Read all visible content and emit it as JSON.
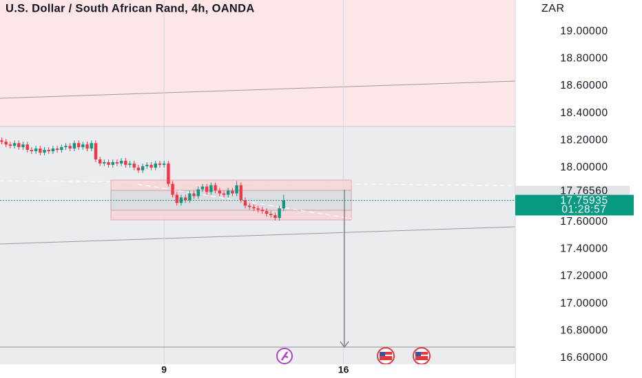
{
  "chart_data": {
    "type": "candlestick",
    "title": "U.S. Dollar / South African Rand, 4h, OANDA",
    "y_axis_label": "ZAR",
    "x": [
      2.667,
      2.833,
      3,
      3.167,
      3.333,
      3.5,
      3.667,
      3.833,
      4,
      4.167,
      4.333,
      4.5,
      4.667,
      4.833,
      5,
      5.167,
      5.333,
      5.5,
      5.667,
      5.833,
      6,
      6.167,
      6.333,
      6.5,
      6.667,
      6.833,
      7,
      7.167,
      7.333,
      7.5,
      7.667,
      7.833,
      8,
      8.167,
      8.333,
      8.5,
      8.667,
      8.833,
      9,
      9.167,
      9.333,
      9.5,
      9.667,
      9.833,
      10,
      10.167,
      10.333,
      10.5,
      10.667,
      10.833,
      11,
      11.167,
      11.333,
      11.5,
      11.667,
      11.833,
      12,
      12.167,
      12.333,
      12.5,
      12.667,
      12.833,
      13,
      13.167,
      13.333,
      13.5,
      13.667
    ],
    "open": [
      18.2,
      18.19,
      18.17,
      18.16,
      18.18,
      18.15,
      18.17,
      18.13,
      18.12,
      18.14,
      18.11,
      18.13,
      18.12,
      18.14,
      18.13,
      18.15,
      18.16,
      18.14,
      18.18,
      18.15,
      18.17,
      18.14,
      18.18,
      18.06,
      18.03,
      18.04,
      18.02,
      18.04,
      18.03,
      18.05,
      18.02,
      18.03,
      18.0,
      17.98,
      18.01,
      18.02,
      18.0,
      18.03,
      18.02,
      18.03,
      17.88,
      17.8,
      17.74,
      17.78,
      17.76,
      17.81,
      17.79,
      17.84,
      17.86,
      17.82,
      17.87,
      17.83,
      17.81,
      17.8,
      17.83,
      17.81,
      17.87,
      17.76,
      17.72,
      17.71,
      17.7,
      17.69,
      17.68,
      17.66,
      17.65,
      17.63,
      17.7
    ],
    "high": [
      18.22,
      18.21,
      18.19,
      18.2,
      18.2,
      18.19,
      18.19,
      18.15,
      18.16,
      18.16,
      18.15,
      18.15,
      18.16,
      18.16,
      18.17,
      18.18,
      18.18,
      18.2,
      18.2,
      18.19,
      18.19,
      18.2,
      18.2,
      18.08,
      18.06,
      18.06,
      18.06,
      18.06,
      18.07,
      18.07,
      18.05,
      18.05,
      18.02,
      18.03,
      18.04,
      18.04,
      18.05,
      18.05,
      18.05,
      18.05,
      17.9,
      17.82,
      17.8,
      17.8,
      17.83,
      17.83,
      17.86,
      17.88,
      17.88,
      17.89,
      17.89,
      17.85,
      17.83,
      17.85,
      17.85,
      17.9,
      17.89,
      17.78,
      17.74,
      17.73,
      17.72,
      17.71,
      17.7,
      17.68,
      17.67,
      17.72,
      17.8
    ],
    "low": [
      18.17,
      18.15,
      18.14,
      18.14,
      18.13,
      18.13,
      18.11,
      18.1,
      18.1,
      18.09,
      18.09,
      18.1,
      18.1,
      18.11,
      18.11,
      18.13,
      18.12,
      18.12,
      18.13,
      18.13,
      18.12,
      18.12,
      18.04,
      18.01,
      18.01,
      18.0,
      18.0,
      18.01,
      18.01,
      18.0,
      18.0,
      17.98,
      17.96,
      17.96,
      17.99,
      17.98,
      17.98,
      18.0,
      18.0,
      17.86,
      17.78,
      17.72,
      17.72,
      17.74,
      17.74,
      17.77,
      17.77,
      17.82,
      17.8,
      17.8,
      17.81,
      17.79,
      17.78,
      17.78,
      17.79,
      17.79,
      17.74,
      17.7,
      17.69,
      17.68,
      17.67,
      17.66,
      17.64,
      17.63,
      17.61,
      17.61,
      17.68
    ],
    "close": [
      18.19,
      18.17,
      18.16,
      18.18,
      18.15,
      18.17,
      18.13,
      18.12,
      18.14,
      18.11,
      18.13,
      18.12,
      18.14,
      18.13,
      18.15,
      18.16,
      18.14,
      18.18,
      18.15,
      18.17,
      18.14,
      18.18,
      18.06,
      18.03,
      18.04,
      18.02,
      18.04,
      18.03,
      18.05,
      18.02,
      18.03,
      18.0,
      17.98,
      18.01,
      18.02,
      18.0,
      18.03,
      18.02,
      18.03,
      17.88,
      17.8,
      17.74,
      17.78,
      17.76,
      17.81,
      17.79,
      17.84,
      17.86,
      17.82,
      17.87,
      17.83,
      17.81,
      17.8,
      17.83,
      17.81,
      17.87,
      17.76,
      17.72,
      17.71,
      17.7,
      17.69,
      17.68,
      17.66,
      17.65,
      17.63,
      17.7,
      17.75935
    ],
    "up_color": "#089981",
    "down_color": "#f23645",
    "countdown": "01:28:57",
    "marked_level": {
      "value": 17.7656,
      "label": "17.76560"
    },
    "xlim": [
      2.6,
      22.7
    ],
    "xticks": [
      9,
      16
    ],
    "x_grid": true,
    "ylim": [
      16.554,
      19.232
    ],
    "yticks": [
      {
        "value": 16.6,
        "label": "16.60000"
      },
      {
        "value": 16.8,
        "label": "16.80000"
      },
      {
        "value": 17.0,
        "label": "17.00000"
      },
      {
        "value": 17.2,
        "label": "17.20000"
      },
      {
        "value": 17.4,
        "label": "17.40000"
      },
      {
        "value": 17.6,
        "label": "17.60000"
      },
      {
        "value": 17.8,
        "label": "17.80000"
      },
      {
        "value": 18.0,
        "label": "18.00000"
      },
      {
        "value": 18.2,
        "label": "18.20000"
      },
      {
        "value": 18.4,
        "label": "18.40000"
      },
      {
        "value": 18.6,
        "label": "18.60000"
      },
      {
        "value": 18.8,
        "label": "18.80000"
      },
      {
        "value": 19.0,
        "label": "19.00000"
      }
    ]
  }
}
